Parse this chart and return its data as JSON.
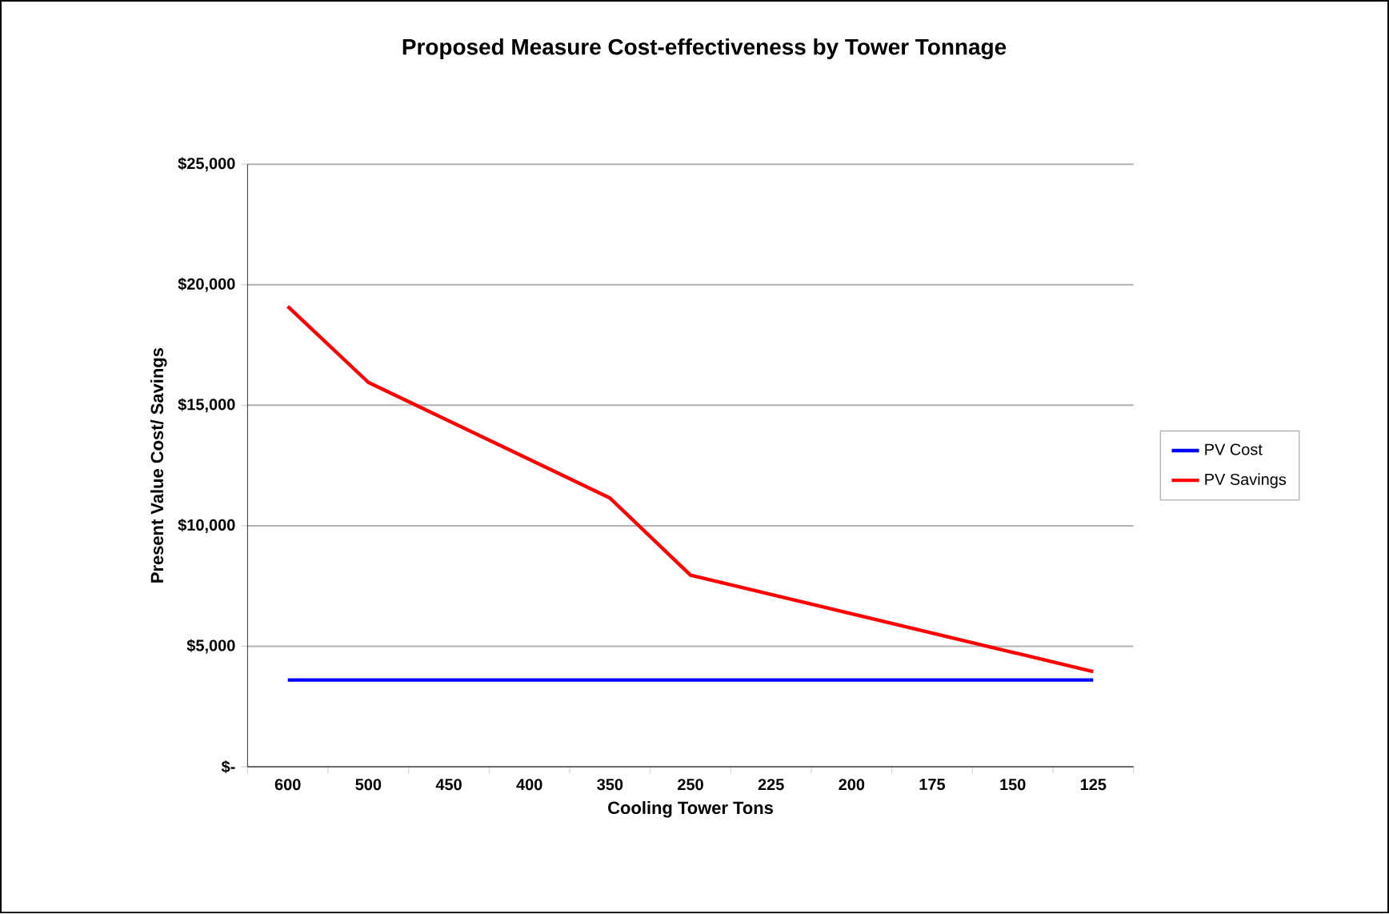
{
  "chart_data": {
    "type": "line",
    "title": "Proposed Measure Cost-effectiveness by Tower Tonnage",
    "xlabel": "Cooling Tower Tons",
    "ylabel": "Present Value Cost/ Savings",
    "categories": [
      "600",
      "500",
      "450",
      "400",
      "350",
      "250",
      "225",
      "200",
      "175",
      "150",
      "125"
    ],
    "series": [
      {
        "name": "PV Cost",
        "color": "#0000ff",
        "values": [
          3600,
          3600,
          3600,
          3600,
          3600,
          3600,
          3600,
          3600,
          3600,
          3600,
          3600
        ]
      },
      {
        "name": "PV Savings",
        "color": "#ff0000",
        "values": [
          19100,
          15950,
          14350,
          12750,
          11150,
          7950,
          7150,
          6350,
          5550,
          4750,
          3950
        ]
      }
    ],
    "ylim": [
      0,
      25000
    ],
    "yticks": [
      {
        "value": 0,
        "label": "$-"
      },
      {
        "value": 5000,
        "label": "$5,000"
      },
      {
        "value": 10000,
        "label": "$10,000"
      },
      {
        "value": 15000,
        "label": "$15,000"
      },
      {
        "value": 20000,
        "label": "$20,000"
      },
      {
        "value": 25000,
        "label": "$25,000"
      }
    ],
    "grid": "y",
    "legend": "right"
  }
}
